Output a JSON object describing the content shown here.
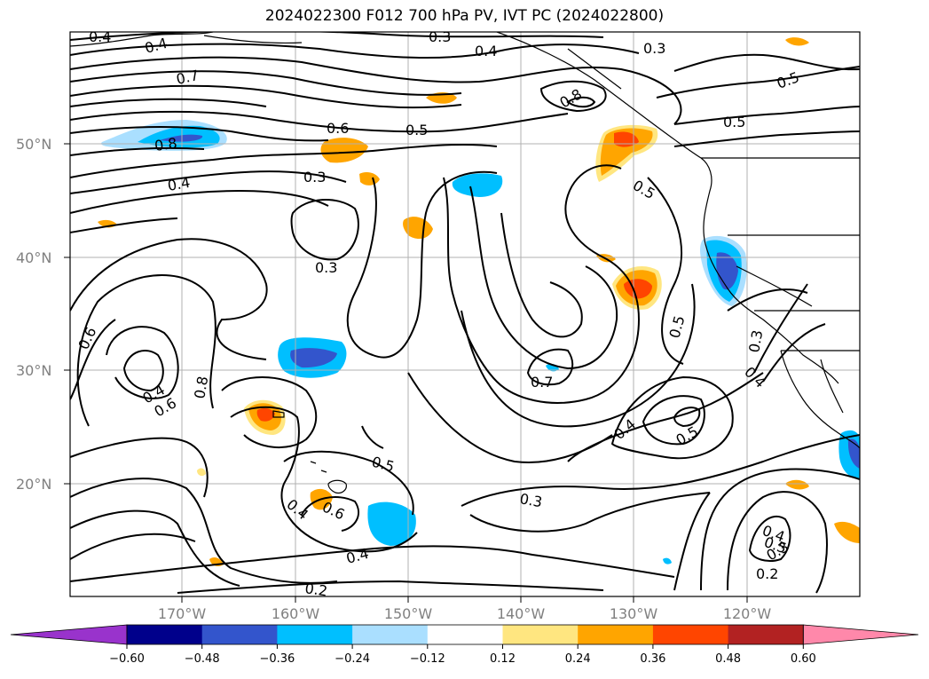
{
  "title": "2024022300 F012 700 hPa PV, IVT PC (2024022800)",
  "lat_labels": [
    "50°N",
    "40°N",
    "30°N",
    "20°N"
  ],
  "lon_labels": [
    "170°W",
    "160°W",
    "150°W",
    "140°W",
    "130°W",
    "120°W"
  ],
  "contour_labels": [
    "0.4",
    "0.4",
    "0.7",
    "0.8",
    "0.4",
    "0.6",
    "0.3",
    "0.4",
    "0.3",
    "0.5",
    "0.3",
    "0.8",
    "0.5",
    "0.5",
    "0.5",
    "0.6",
    "0.3",
    "0.4",
    "0.6",
    "0.8",
    "0.7",
    "0.5",
    "0.4",
    "0.5",
    "0.3",
    "0.4",
    "0.5",
    "0.4",
    "0.6",
    "0.3",
    "0.5",
    "0.4",
    "0.4",
    "0.3",
    "0.2",
    "0.2"
  ],
  "colorbar": {
    "ticks": [
      "−0.60",
      "−0.48",
      "−0.36",
      "−0.24",
      "−0.12",
      "0.12",
      "0.24",
      "0.36",
      "0.48",
      "0.60"
    ],
    "colors": [
      "#9933cc",
      "#00008b",
      "#3355cc",
      "#00bfff",
      "#aadfff",
      "#ffffff",
      "#ffe680",
      "#ffa500",
      "#ff4500",
      "#b22222",
      "#ff88aa"
    ],
    "extend": "both"
  }
}
